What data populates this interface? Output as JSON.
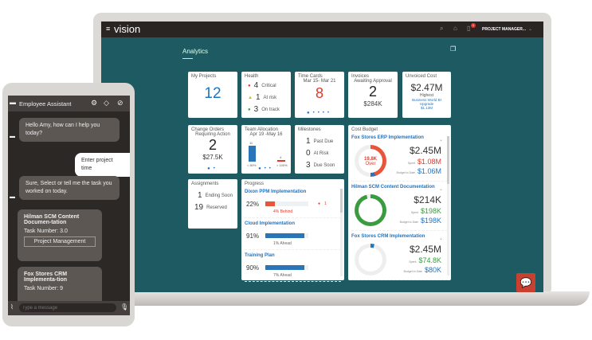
{
  "app": {
    "title": "vision",
    "user": "PROJECT MANAGER...",
    "notification_count": "1",
    "page_title": "Analytics"
  },
  "tiles": {
    "my_projects": {
      "title": "My Projects",
      "value": "12"
    },
    "health": {
      "title": "Health",
      "items": [
        {
          "count": "4",
          "label": "Critical"
        },
        {
          "count": "1",
          "label": "At risk"
        },
        {
          "count": "3",
          "label": "On track"
        }
      ]
    },
    "time_cards": {
      "title": "Time Cards",
      "subtitle": "Mar 15- Mar 21",
      "value": "8"
    },
    "invoices": {
      "title": "Invoices",
      "subtitle": "Awaiting Approval",
      "value": "2",
      "amount": "$284K"
    },
    "unvoiced": {
      "title": "Unvoiced Cost",
      "value": "$2.47M",
      "label": "Highest",
      "project": "Business World BI Upgrade",
      "amount": "$1.13M"
    },
    "change_orders": {
      "title": "Change Orders",
      "subtitle": "Requiring Action",
      "value": "2",
      "amount": "$27.5K"
    },
    "team_allocation": {
      "title": "Team Allocation",
      "subtitle": "Apr 19 -May 16",
      "bars": [
        {
          "value": "11",
          "label": "< 80%"
        },
        {
          "value": "4",
          "label": "> 100%"
        }
      ]
    },
    "milestones": {
      "title": "Milestones",
      "items": [
        {
          "count": "1",
          "label": "Past Due"
        },
        {
          "count": "0",
          "label": "At Risk"
        },
        {
          "count": "3",
          "label": "Due Soon"
        }
      ]
    },
    "assignments": {
      "title": "Assignments",
      "items": [
        {
          "count": "1",
          "label": "Ending Soon"
        },
        {
          "count": "19",
          "label": "Reserved"
        }
      ]
    },
    "progress": {
      "title": "Progress",
      "items": [
        {
          "name": "Dixon PPM Implementation",
          "pct": "22%",
          "status": "4% Behind",
          "issues": "1",
          "fill": 22,
          "color": "#e8553a"
        },
        {
          "name": "Cloud Implementation",
          "pct": "91%",
          "status": "1%  Ahead",
          "fill": 91,
          "color": "#2a74b8"
        },
        {
          "name": "Training Plan",
          "pct": "90%",
          "status": "7%  Ahead",
          "fill": 90,
          "color": "#2a74b8"
        }
      ]
    },
    "cost_budget": {
      "title": "Cost Budget",
      "spent_label": "Spent",
      "budget_label": "Budget to Date",
      "items": [
        {
          "name": "Fox Stores ERP Implementation",
          "total": "$2.45M",
          "spent": "$1.08M",
          "budget": "$1.06M",
          "center": "19.8K",
          "center_label": "Over",
          "spent_color": "#e0392b"
        },
        {
          "name": "Hilman SCM Content Documentation",
          "total": "$214K",
          "spent": "$198K",
          "budget": "$198K",
          "spent_color": "#3a9b3f"
        },
        {
          "name": "Fox Stores CRM Implementation",
          "total": "$2.45M",
          "spent": "$74.8K",
          "budget": "$80K",
          "spent_color": "#3a9b3f"
        }
      ]
    }
  },
  "assistant": {
    "title": "Employee Assistant",
    "messages": [
      {
        "from": "bot",
        "text": "Hello Amy, how can I help you today?"
      },
      {
        "from": "user",
        "text": "Enter project time"
      },
      {
        "from": "bot",
        "text": "Sure, Select or tell me the task you worked on today."
      }
    ],
    "cards": [
      {
        "title": "Hilman SCM Content Documen-tation",
        "task": "Task Number: 3.0",
        "action": "Project Management"
      },
      {
        "title": "Fox Stores CRM Implementa-tion",
        "task": "Task Number: 9"
      }
    ],
    "input_placeholder": "Type a message"
  },
  "colors": {
    "teal": "#1e5a62",
    "accent_blue": "#1f74c2",
    "alert_red": "#e0392b",
    "chat_button": "#c9402f"
  }
}
